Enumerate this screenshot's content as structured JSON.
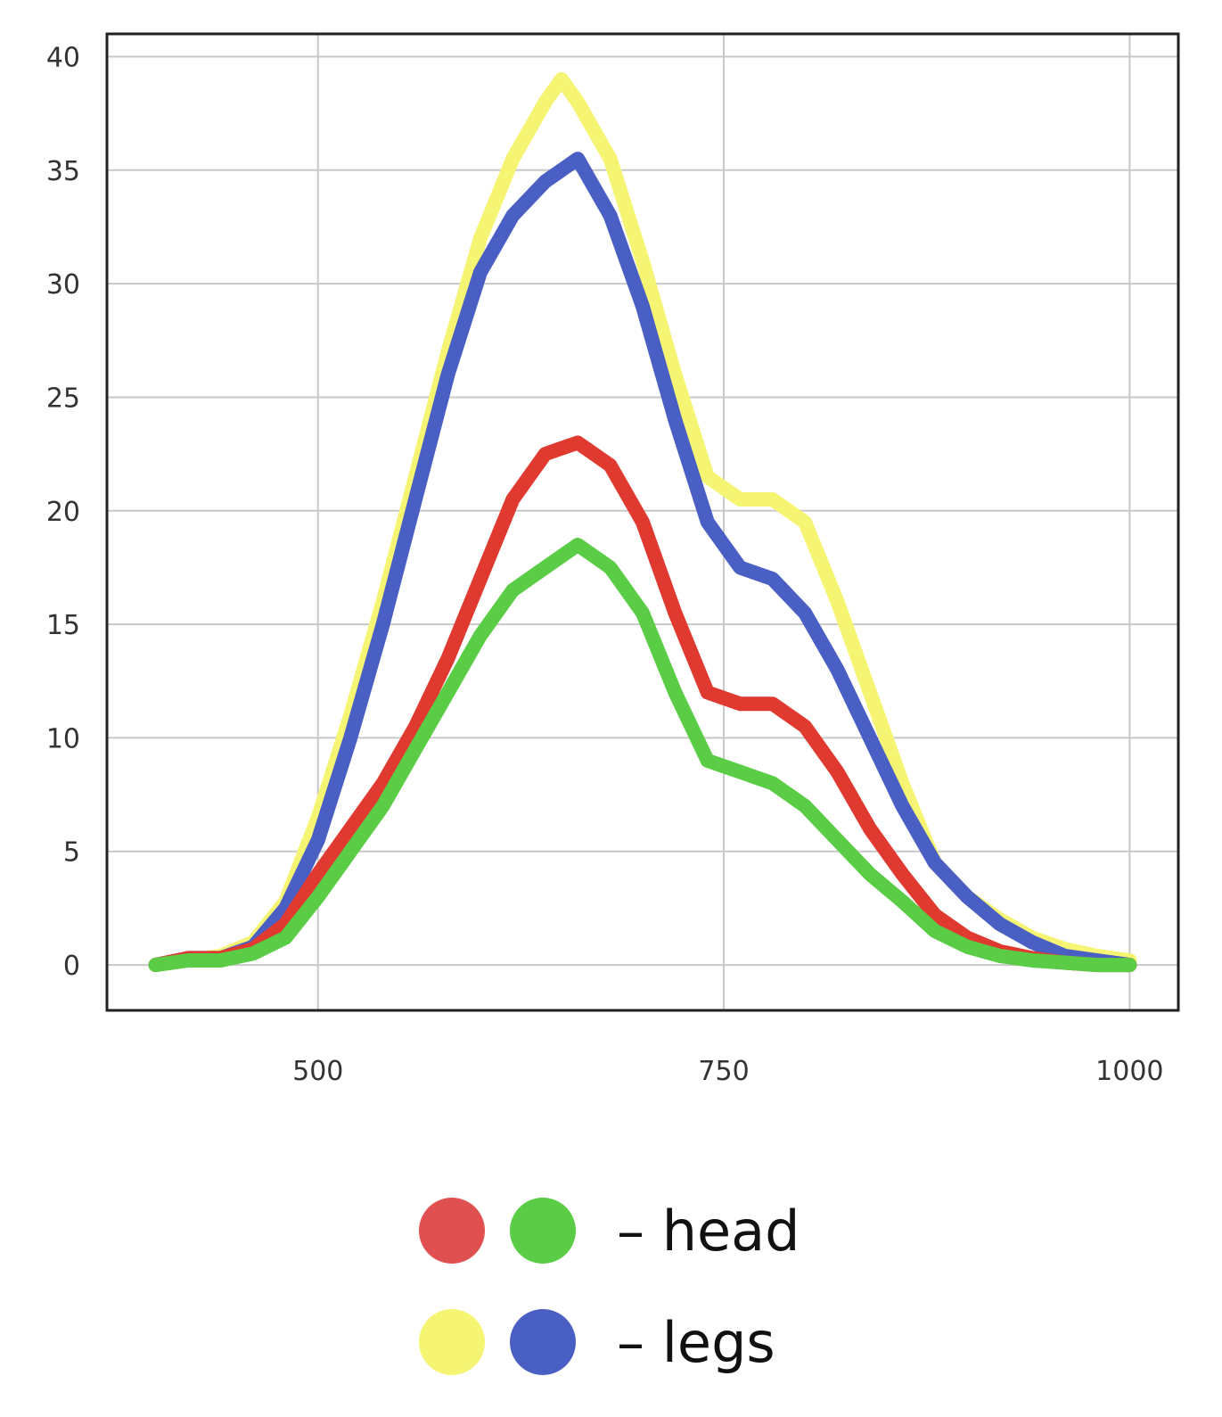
{
  "chart_data": {
    "type": "line",
    "title": "",
    "xlabel": "",
    "ylabel": "",
    "xlim": [
      370,
      1030
    ],
    "ylim": [
      -2,
      41
    ],
    "x_ticks": [
      500,
      750,
      1000
    ],
    "y_ticks": [
      0,
      5,
      10,
      15,
      20,
      25,
      30,
      35,
      40
    ],
    "grid": true,
    "legend_placement": "bottom-center",
    "series": [
      {
        "color": "#f5f573",
        "x": [
          400,
          420,
          440,
          460,
          480,
          500,
          520,
          540,
          560,
          580,
          600,
          620,
          640,
          650,
          660,
          680,
          700,
          720,
          740,
          760,
          780,
          800,
          820,
          840,
          860,
          880,
          900,
          920,
          940,
          960,
          980,
          1000
        ],
        "values": [
          0,
          0.2,
          0.4,
          1.0,
          2.8,
          6.5,
          11.0,
          16.0,
          21.5,
          27.0,
          32.0,
          35.5,
          38.0,
          39.0,
          38.0,
          35.5,
          31.0,
          26.0,
          21.5,
          20.5,
          20.5,
          19.5,
          16.0,
          12.0,
          8.0,
          4.5,
          3.0,
          2.0,
          1.2,
          0.7,
          0.4,
          0.2
        ]
      },
      {
        "color": "#4a5fc4",
        "x": [
          400,
          420,
          440,
          460,
          480,
          500,
          520,
          540,
          560,
          580,
          600,
          620,
          640,
          660,
          680,
          700,
          720,
          740,
          760,
          780,
          800,
          820,
          840,
          860,
          880,
          900,
          920,
          940,
          960,
          980,
          1000
        ],
        "values": [
          0,
          0.3,
          0.3,
          0.8,
          2.5,
          5.5,
          10.0,
          15.0,
          20.5,
          26.0,
          30.5,
          33.0,
          34.5,
          35.5,
          33.0,
          29.0,
          24.0,
          19.5,
          17.5,
          17.0,
          15.5,
          13.0,
          10.0,
          7.0,
          4.5,
          3.0,
          1.8,
          1.0,
          0.4,
          0.2,
          0
        ]
      },
      {
        "color": "#e03a30",
        "x": [
          400,
          420,
          440,
          460,
          480,
          500,
          520,
          540,
          560,
          580,
          600,
          620,
          640,
          660,
          680,
          700,
          720,
          740,
          760,
          780,
          800,
          820,
          840,
          860,
          880,
          900,
          920,
          940,
          960,
          980,
          1000
        ],
        "values": [
          0,
          0.3,
          0.3,
          0.7,
          1.8,
          4.0,
          6.0,
          8.0,
          10.5,
          13.5,
          17.0,
          20.5,
          22.5,
          23.0,
          22.0,
          19.5,
          15.5,
          12.0,
          11.5,
          11.5,
          10.5,
          8.5,
          6.0,
          4.0,
          2.2,
          1.2,
          0.6,
          0.3,
          0.1,
          0,
          0
        ]
      },
      {
        "color": "#5acc45",
        "x": [
          400,
          420,
          440,
          460,
          480,
          500,
          520,
          540,
          560,
          580,
          600,
          620,
          640,
          660,
          680,
          700,
          720,
          740,
          760,
          780,
          800,
          820,
          840,
          860,
          880,
          900,
          920,
          940,
          960,
          980,
          1000
        ],
        "values": [
          0,
          0.2,
          0.2,
          0.5,
          1.2,
          3.0,
          5.0,
          7.0,
          9.5,
          12.0,
          14.5,
          16.5,
          17.5,
          18.5,
          17.5,
          15.5,
          12.0,
          9.0,
          8.5,
          8.0,
          7.0,
          5.5,
          4.0,
          2.8,
          1.5,
          0.8,
          0.4,
          0.2,
          0.1,
          0,
          0
        ]
      }
    ]
  },
  "legend": [
    {
      "text": "– head",
      "colors": [
        "#e05050",
        "#5acc45"
      ]
    },
    {
      "text": "– legs",
      "colors": [
        "#f5f573",
        "#4a5fc4"
      ]
    }
  ]
}
